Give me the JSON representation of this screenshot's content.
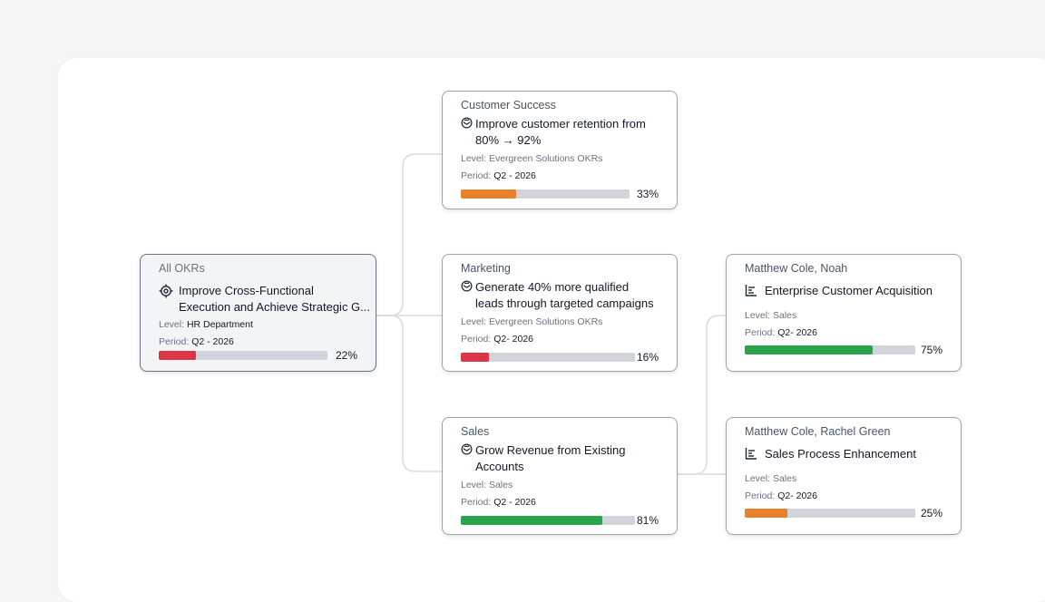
{
  "colors": {
    "red": "#dc3545",
    "orange": "#e8822a",
    "green": "#2aa44a",
    "track": "#d1d5db",
    "connector": "#d9dbe0"
  },
  "root": {
    "team": "All OKRs",
    "icon": "target-icon",
    "title_line1": "Improve Cross-Functional",
    "title_line2": "Execution and Achieve Strategic G...",
    "level_label": "Level:",
    "level_value": "HR Department",
    "period_label": "Period:",
    "period_value": "Q2 - 2026",
    "progress": 22,
    "progress_text": "22%",
    "progress_color": "red"
  },
  "objectives": [
    {
      "team": "Customer Success",
      "icon": "objective-icon",
      "title": "Improve customer retention from 80% → 92%",
      "level_label": "Level:",
      "level_value": "Evergreen Solutions OKRs",
      "period_label": "Period:",
      "period_value": "Q2 - 2026",
      "progress": 33,
      "progress_text": "33%",
      "progress_color": "orange"
    },
    {
      "team": "Marketing",
      "icon": "objective-icon",
      "title": "Generate 40% more qualified leads through targeted campaigns",
      "level_label": "Level:",
      "level_value": "Evergreen Solutions OKRs",
      "period_label": "Period:",
      "period_value": "Q2- 2026",
      "progress": 16,
      "progress_text": "16%",
      "progress_color": "red"
    },
    {
      "team": "Sales",
      "icon": "objective-icon",
      "title": "Grow Revenue from Existing Accounts",
      "level_label": "Level:",
      "level_value": "Sales",
      "period_label": "Period:",
      "period_value": "Q2 - 2026",
      "progress": 81,
      "progress_text": "81%",
      "progress_color": "green"
    }
  ],
  "key_results": [
    {
      "owners": "Matthew Cole, Noah",
      "icon": "key-result-icon",
      "title": "Enterprise Customer Acquisition",
      "level_label": "Level:",
      "level_value": "Sales",
      "period_label": "Period:",
      "period_value": "Q2- 2026",
      "progress": 75,
      "progress_text": "75%",
      "progress_color": "green"
    },
    {
      "owners": "Matthew Cole, Rachel Green",
      "icon": "key-result-icon",
      "title": "Sales Process Enhancement",
      "level_label": "Level:",
      "level_value": "Sales",
      "period_label": "Period:",
      "period_value": "Q2- 2026",
      "progress": 25,
      "progress_text": "25%",
      "progress_color": "orange"
    }
  ]
}
